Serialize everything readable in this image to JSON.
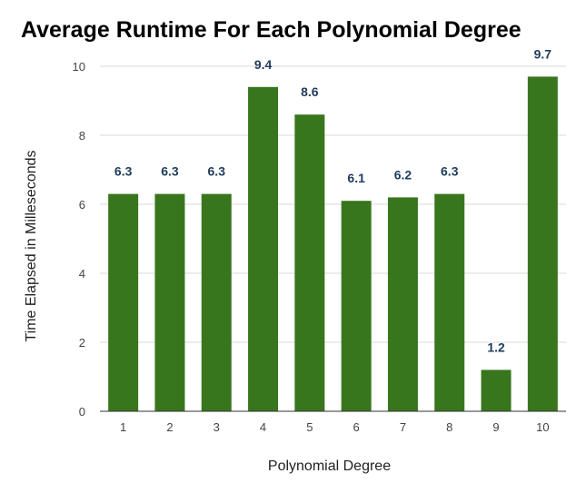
{
  "chart_data": {
    "type": "bar",
    "title": "Average Runtime For Each Polynomial Degree",
    "xlabel": "Polynomial Degree",
    "ylabel": "Time Elapsed in Milleseconds",
    "categories": [
      "1",
      "2",
      "3",
      "4",
      "5",
      "6",
      "7",
      "8",
      "9",
      "10"
    ],
    "values": [
      6.3,
      6.3,
      6.3,
      9.4,
      8.6,
      6.1,
      6.2,
      6.3,
      1.2,
      9.7
    ],
    "data_labels": [
      "6.3",
      "6.3",
      "6.3",
      "9.4",
      "8.6",
      "6.1",
      "6.2",
      "6.3",
      "1.2",
      "9.7"
    ],
    "ylim": [
      0,
      10
    ],
    "yticks": [
      0,
      2,
      4,
      6,
      8,
      10
    ],
    "ytick_labels": [
      "0",
      "2",
      "4",
      "6",
      "8",
      "10"
    ],
    "grid": true,
    "legend": "none",
    "colors": {
      "bar": "#38761d",
      "label": "#1f3b5c",
      "grid": "#d9d9d9",
      "axis": "#333333"
    }
  }
}
